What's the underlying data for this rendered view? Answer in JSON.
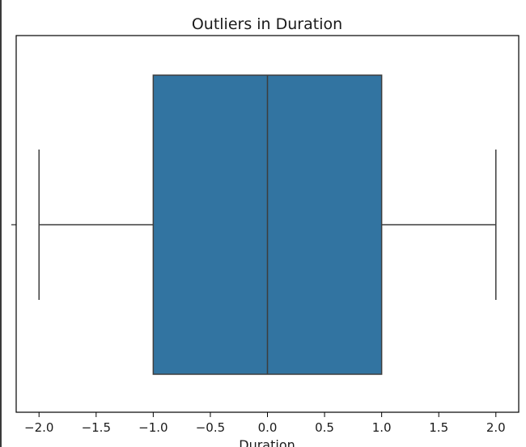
{
  "chart_data": {
    "type": "box",
    "title": "Outliers in Duration",
    "xlabel": "Duration",
    "ylabel": "",
    "xlim": [
      -2.2,
      2.2
    ],
    "x_ticks": [
      -2.0,
      -1.5,
      -1.0,
      -0.5,
      0.0,
      0.5,
      1.0,
      1.5,
      2.0
    ],
    "x_tick_labels": [
      "−2.0",
      "−1.5",
      "−1.0",
      "−0.5",
      "0.0",
      "0.5",
      "1.0",
      "1.5",
      "2.0"
    ],
    "boxes": [
      {
        "whisker_low": -2.0,
        "q1": -1.0,
        "median": 0.0,
        "q3": 1.0,
        "whisker_high": 2.0
      }
    ],
    "outliers": [],
    "grid": false,
    "colors": {
      "box_fill": "#3274a1",
      "lines": "#3d3d3d",
      "axes": "#000000"
    }
  }
}
